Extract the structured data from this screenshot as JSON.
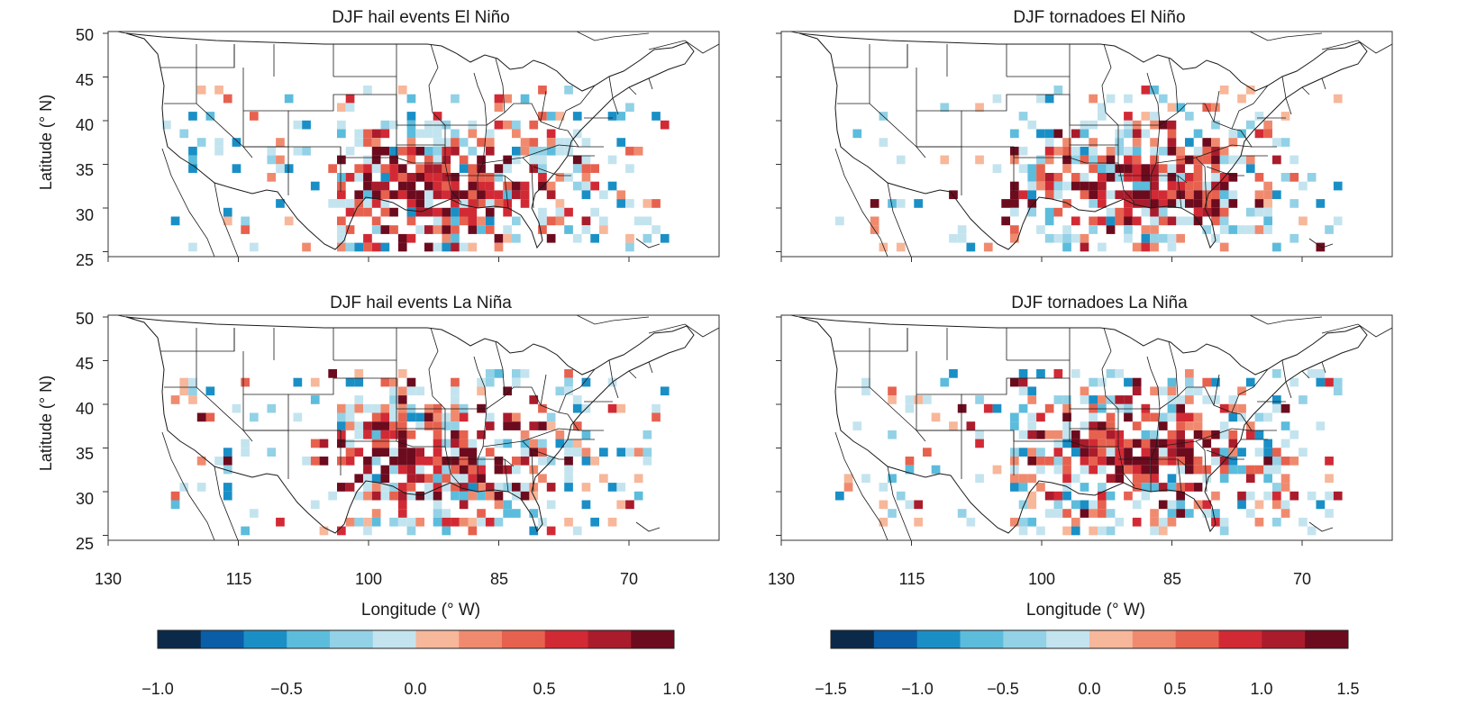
{
  "figure": {
    "panels": [
      {
        "id": "hail-el-nino",
        "title": "DJF hail events El Niño",
        "colorbar": "hail"
      },
      {
        "id": "tornado-el-nino",
        "title": "DJF tornadoes El Niño",
        "colorbar": "tornado"
      },
      {
        "id": "hail-la-nina",
        "title": "DJF hail events La Niña",
        "colorbar": "hail"
      },
      {
        "id": "tornado-la-nina",
        "title": "DJF tornadoes La Niña",
        "colorbar": "tornado"
      }
    ],
    "ylabel": "Latitude (° N)",
    "xlabel": "Longitude (° W)",
    "lat_ticks": [
      "50",
      "45",
      "40",
      "35",
      "30",
      "25"
    ],
    "lon_ticks": [
      "130",
      "115",
      "100",
      "85",
      "70"
    ]
  },
  "colorbars": [
    {
      "id": "hail",
      "ticks": [
        "−1.0",
        "−0.5",
        "0.0",
        "0.5",
        "1.0"
      ]
    },
    {
      "id": "tornado",
      "ticks": [
        "−1.5",
        "−1.0",
        "−0.5",
        "0.0",
        "0.5",
        "1.0",
        "1.5"
      ]
    }
  ],
  "colors": {
    "palette": [
      "#0b2a4a",
      "#0a5ea8",
      "#1a8fc6",
      "#5cbcdc",
      "#93d1e6",
      "#c3e4ef",
      "#f7b79a",
      "#f08a6f",
      "#e7614f",
      "#d22a35",
      "#aa1c2c",
      "#6d0b1e"
    ],
    "state_lines": "#1a1a1a",
    "frame": "#333333"
  },
  "chart_data": [
    {
      "type": "heatmap",
      "title": "DJF hail events El Niño",
      "xlabel": "Longitude (° W)",
      "ylabel": "Latitude (° N)",
      "xlim": [
        130,
        60
      ],
      "ylim": [
        25,
        50
      ],
      "colorbar_range": [
        -1.0,
        1.0
      ],
      "levels": 12
    },
    {
      "type": "heatmap",
      "title": "DJF tornadoes El Niño",
      "xlabel": "Longitude (° W)",
      "ylabel": "Latitude (° N)",
      "xlim": [
        130,
        60
      ],
      "ylim": [
        25,
        50
      ],
      "colorbar_range": [
        -1.5,
        1.5
      ],
      "levels": 12
    },
    {
      "type": "heatmap",
      "title": "DJF hail events La Niña",
      "xlabel": "Longitude (° W)",
      "ylabel": "Latitude (° N)",
      "xlim": [
        130,
        60
      ],
      "ylim": [
        25,
        50
      ],
      "colorbar_range": [
        -1.0,
        1.0
      ],
      "levels": 12
    },
    {
      "type": "heatmap",
      "title": "DJF tornadoes La Niña",
      "xlabel": "Longitude (° W)",
      "ylabel": "Latitude (° N)",
      "xlim": [
        130,
        60
      ],
      "ylim": [
        25,
        50
      ],
      "colorbar_range": [
        -1.5,
        1.5
      ],
      "levels": 12
    }
  ]
}
